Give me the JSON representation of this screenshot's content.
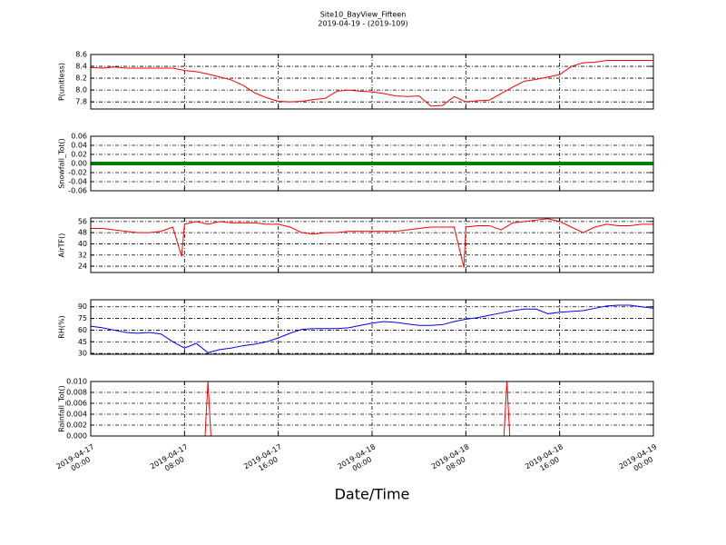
{
  "chart_data": {
    "type": "line",
    "title": "Site10_BayView_Fifteen",
    "subtitle": "2019-04-19 - (2019-109)",
    "xlabel": "Date/Time",
    "xlim": [
      "2019-04-17 00:00",
      "2019-04-19 00:00"
    ],
    "xticks": [
      {
        "value": "2019-04-17 00:00",
        "label": [
          "2019-04-17",
          "00:00"
        ]
      },
      {
        "value": "2019-04-17 08:00",
        "label": [
          "2019-04-17",
          "08:00"
        ]
      },
      {
        "value": "2019-04-17 16:00",
        "label": [
          "2019-04-17",
          "16:00"
        ]
      },
      {
        "value": "2019-04-18 00:00",
        "label": [
          "2019-04-18",
          "00:00"
        ]
      },
      {
        "value": "2019-04-18 08:00",
        "label": [
          "2019-04-18",
          "08:00"
        ]
      },
      {
        "value": "2019-04-18 16:00",
        "label": [
          "2019-04-18",
          "16:00"
        ]
      },
      {
        "value": "2019-04-19 00:00",
        "label": [
          "2019-04-19",
          "00:00"
        ]
      }
    ],
    "grid": true,
    "x": [
      "2019-04-17 00:00",
      "2019-04-17 01:00",
      "2019-04-17 02:00",
      "2019-04-17 03:00",
      "2019-04-17 04:00",
      "2019-04-17 05:00",
      "2019-04-17 06:00",
      "2019-04-17 07:00",
      "2019-04-17 08:00",
      "2019-04-17 09:00",
      "2019-04-17 10:00",
      "2019-04-17 11:00",
      "2019-04-17 12:00",
      "2019-04-17 13:00",
      "2019-04-17 14:00",
      "2019-04-17 15:00",
      "2019-04-17 16:00",
      "2019-04-17 17:00",
      "2019-04-17 18:00",
      "2019-04-17 19:00",
      "2019-04-17 20:00",
      "2019-04-17 21:00",
      "2019-04-17 22:00",
      "2019-04-17 23:00",
      "2019-04-18 00:00",
      "2019-04-18 01:00",
      "2019-04-18 02:00",
      "2019-04-18 03:00",
      "2019-04-18 04:00",
      "2019-04-18 05:00",
      "2019-04-18 06:00",
      "2019-04-18 07:00",
      "2019-04-18 08:00",
      "2019-04-18 09:00",
      "2019-04-18 10:00",
      "2019-04-18 11:00",
      "2019-04-18 12:00",
      "2019-04-18 13:00",
      "2019-04-18 14:00",
      "2019-04-18 15:00",
      "2019-04-18 16:00",
      "2019-04-18 17:00",
      "2019-04-18 18:00",
      "2019-04-18 19:00",
      "2019-04-18 20:00",
      "2019-04-18 21:00",
      "2019-04-18 22:00",
      "2019-04-18 23:00",
      "2019-04-19 00:00"
    ],
    "panels": [
      {
        "ylabel": "P(unitless)",
        "ylim": [
          7.68,
          8.6
        ],
        "yticks": [
          7.8,
          {
            "value": 8,
            "label": "8.0"
          },
          8.2,
          8.4,
          8.6
        ],
        "series": [
          {
            "color": "#ff0000",
            "values": [
              8.38,
              8.37,
              8.39,
              8.37,
              8.37,
              8.37,
              8.37,
              8.37,
              8.33,
              8.31,
              8.27,
              8.22,
              8.17,
              8.08,
              7.95,
              7.87,
              7.81,
              7.8,
              7.81,
              7.84,
              7.86,
              7.98,
              8.0,
              7.98,
              7.97,
              7.94,
              7.9,
              7.89,
              7.9,
              7.73,
              7.74,
              7.89,
              7.8,
              7.82,
              7.83,
              7.94,
              8.05,
              8.15,
              8.18,
              8.22,
              8.26,
              8.4,
              8.46,
              8.47,
              8.5,
              8.5,
              8.5,
              8.5,
              8.5
            ]
          }
        ]
      },
      {
        "ylabel": "Snowfall_Tot()",
        "ylim": [
          -0.06,
          0.06
        ],
        "yticks": [
          -0.06,
          -0.04,
          -0.02,
          {
            "value": 0,
            "label": "0.00"
          },
          0.02,
          0.04,
          0.06
        ],
        "series": [
          {
            "color": "#008000",
            "values": [
              0,
              0,
              0,
              0,
              0,
              0,
              0,
              0,
              0,
              0,
              0,
              0,
              0,
              0,
              0,
              0,
              0,
              0,
              0,
              0,
              0,
              0,
              0,
              0,
              0,
              0,
              0,
              0,
              0,
              0,
              0,
              0,
              0,
              0,
              0,
              0,
              0,
              0,
              0,
              0,
              0,
              0,
              0,
              0,
              0,
              0,
              0,
              0,
              0
            ]
          }
        ]
      },
      {
        "ylabel": "AirTF()",
        "ylim": [
          19.5,
          58.5
        ],
        "yticks": [
          24,
          32,
          40,
          48,
          56
        ],
        "series": [
          {
            "color": "#ff0000",
            "x": [
              "2019-04-17 00:00",
              "2019-04-17 01:00",
              "2019-04-17 02:00",
              "2019-04-17 03:00",
              "2019-04-17 04:00",
              "2019-04-17 05:00",
              "2019-04-17 06:00",
              "2019-04-17 07:00",
              "2019-04-17 07:45",
              "2019-04-17 08:00",
              "2019-04-17 09:00",
              "2019-04-17 10:00",
              "2019-04-17 11:00",
              "2019-04-17 12:00",
              "2019-04-17 13:00",
              "2019-04-17 14:00",
              "2019-04-17 15:00",
              "2019-04-17 16:00",
              "2019-04-17 17:00",
              "2019-04-17 18:00",
              "2019-04-17 19:00",
              "2019-04-17 20:00",
              "2019-04-17 21:00",
              "2019-04-17 22:00",
              "2019-04-17 23:00",
              "2019-04-18 00:00",
              "2019-04-18 01:00",
              "2019-04-18 02:00",
              "2019-04-18 03:00",
              "2019-04-18 04:00",
              "2019-04-18 05:00",
              "2019-04-18 06:00",
              "2019-04-18 07:00",
              "2019-04-18 07:50",
              "2019-04-18 08:00",
              "2019-04-18 09:00",
              "2019-04-18 10:00",
              "2019-04-18 11:00",
              "2019-04-18 12:00",
              "2019-04-18 13:00",
              "2019-04-18 14:00",
              "2019-04-18 15:00",
              "2019-04-18 16:00",
              "2019-04-18 17:00",
              "2019-04-18 18:00",
              "2019-04-18 19:00",
              "2019-04-18 20:00",
              "2019-04-18 21:00",
              "2019-04-18 22:00",
              "2019-04-18 23:00",
              "2019-04-19 00:00"
            ],
            "values": [
              51,
              51,
              50,
              49,
              48,
              48,
              49,
              52,
              31,
              54,
              56,
              54,
              56,
              55,
              55,
              55,
              54,
              54,
              52,
              48,
              47,
              48,
              48,
              49,
              49,
              49,
              49,
              49,
              50,
              51,
              52,
              52,
              52,
              23,
              52,
              53,
              53,
              50,
              55,
              56,
              57,
              58,
              56,
              52,
              48,
              52,
              54,
              53,
              53,
              54,
              54
            ]
          }
        ]
      },
      {
        "ylabel": "RH(%)",
        "ylim": [
          29,
          99
        ],
        "yticks": [
          30,
          45,
          60,
          75,
          90
        ],
        "series": [
          {
            "color": "#0000ff",
            "values": [
              65,
              63,
              60,
              57,
              56,
              57,
              55,
              45,
              37,
              43,
              31,
              35,
              37,
              40,
              42,
              45,
              50,
              56,
              61,
              62,
              62,
              62,
              63,
              66,
              69,
              71,
              70,
              68,
              66,
              66,
              67,
              71,
              74,
              76,
              79,
              82,
              85,
              87,
              87,
              81,
              83,
              84,
              85,
              88,
              91,
              92,
              92,
              90,
              88
            ]
          }
        ]
      },
      {
        "ylabel": "Rainfall_Tot()",
        "ylim": [
          0,
          0.01
        ],
        "yticks": [
          {
            "value": 0,
            "label": "0.000"
          },
          0.002,
          0.004,
          0.006,
          0.008,
          {
            "value": 0.01,
            "label": "0.010"
          }
        ],
        "series": [
          {
            "color": "#ff0000",
            "x": [
              "2019-04-17 00:00",
              "2019-04-17 09:45",
              "2019-04-17 10:00",
              "2019-04-17 10:15",
              "2019-04-18 11:15",
              "2019-04-18 11:30",
              "2019-04-18 11:45",
              "2019-04-19 00:00"
            ],
            "values": [
              0,
              0,
              0.01,
              0,
              0,
              0.01,
              0,
              0
            ]
          }
        ]
      }
    ]
  }
}
